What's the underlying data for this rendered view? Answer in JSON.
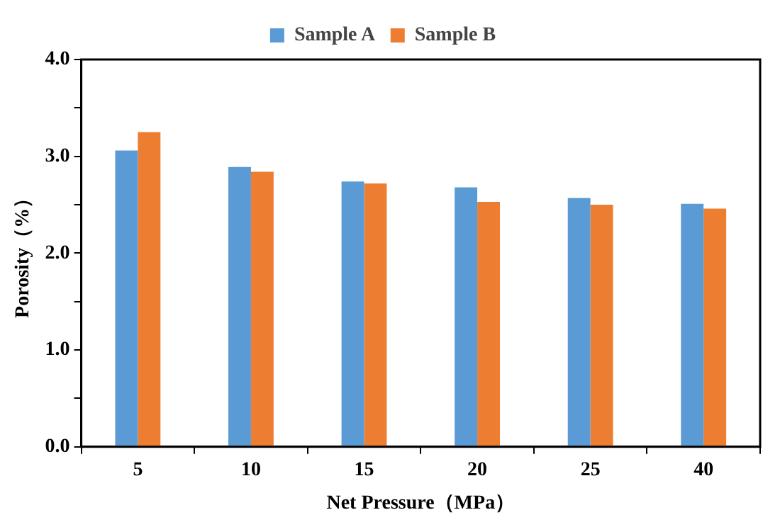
{
  "chart_data": {
    "type": "bar",
    "xlabel": "Net Pressure（MPa）",
    "ylabel": "Porosity（%）",
    "categories": [
      "5",
      "10",
      "15",
      "20",
      "25",
      "40"
    ],
    "series": [
      {
        "name": "Sample A",
        "color": "#5b9bd5",
        "values": [
          3.06,
          2.89,
          2.74,
          2.68,
          2.57,
          2.51
        ]
      },
      {
        "name": "Sample B",
        "color": "#ed7d31",
        "values": [
          3.25,
          2.84,
          2.72,
          2.53,
          2.5,
          2.46
        ]
      }
    ],
    "ylim": [
      0,
      4
    ],
    "yticks": [
      {
        "value": 0,
        "label": "0.0"
      },
      {
        "value": 0.5,
        "label": null
      },
      {
        "value": 1,
        "label": "1.0"
      },
      {
        "value": 1.5,
        "label": null
      },
      {
        "value": 2,
        "label": "2.0"
      },
      {
        "value": 2.5,
        "label": null
      },
      {
        "value": 3,
        "label": "3.0"
      },
      {
        "value": 3.5,
        "label": null
      },
      {
        "value": 4,
        "label": "4.0"
      }
    ],
    "grid": false,
    "legend": "top"
  }
}
